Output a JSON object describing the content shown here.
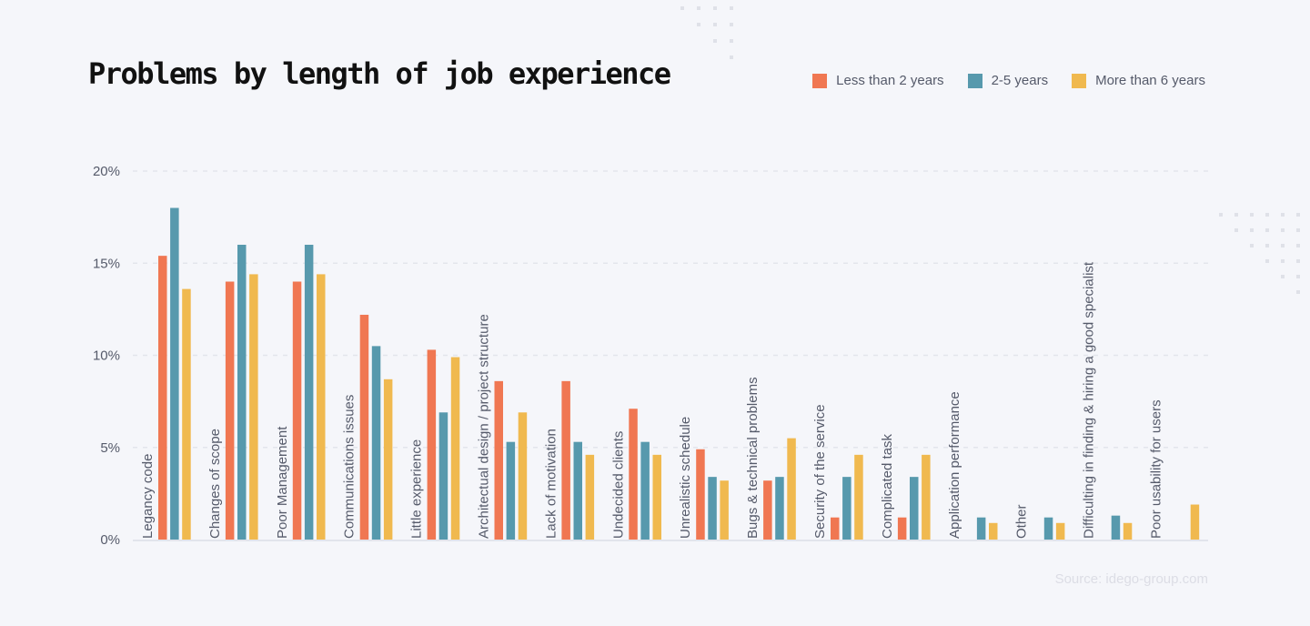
{
  "chart_data": {
    "type": "bar",
    "title": "Problems by length of job experience",
    "source": "Source: idego-group.com",
    "ylim": [
      0,
      20
    ],
    "yticks": [
      "0%",
      "5%",
      "10%",
      "15%",
      "20%"
    ],
    "ytick_values": [
      0,
      5,
      10,
      15,
      20
    ],
    "grid": true,
    "legend_position": "top-right",
    "categories": [
      "Legancy code",
      "Changes of scope",
      "Poor Management",
      "Communications issues",
      "Little experience",
      "Architectual design / project structure",
      "Lack of motivation",
      "Undecided clients",
      "Unrealistic schedule",
      "Bugs & technical problems",
      "Security of the service",
      "Complicated task",
      "Application performance",
      "Other",
      "Difficulting in finding & hiring a good specialist",
      "Poor usability for users"
    ],
    "series": [
      {
        "name": "Less than 2 years",
        "color": "#f07752",
        "values": [
          15.4,
          14.0,
          14.0,
          12.2,
          10.3,
          8.6,
          8.6,
          7.1,
          4.9,
          3.2,
          1.2,
          1.2,
          0,
          0,
          0,
          0
        ]
      },
      {
        "name": "2-5 years",
        "color": "#5799ad",
        "values": [
          18.0,
          16.0,
          16.0,
          10.5,
          6.9,
          5.3,
          5.3,
          5.3,
          3.4,
          3.4,
          3.4,
          3.4,
          1.2,
          1.2,
          1.3,
          0
        ]
      },
      {
        "name": "More than 6 years",
        "color": "#f0b94f",
        "values": [
          13.6,
          14.4,
          14.4,
          8.7,
          9.9,
          6.9,
          4.6,
          4.6,
          3.2,
          5.5,
          4.6,
          4.6,
          0.9,
          0.9,
          0.9,
          1.9
        ]
      }
    ]
  }
}
